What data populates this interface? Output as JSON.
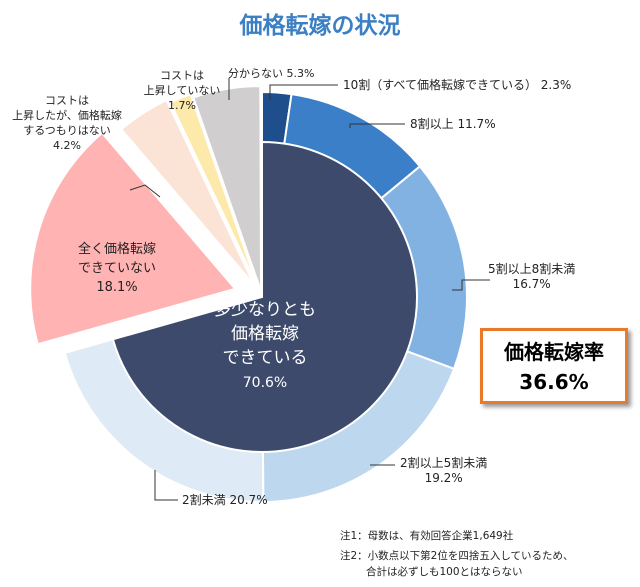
{
  "chart_data": {
    "type": "pie",
    "title": "価格転嫁の状況",
    "inner": {
      "label": "多少なりとも価格転嫁できている",
      "label_lines": [
        "多少なりとも",
        "価格転嫁",
        "できている"
      ],
      "value": 70.6,
      "color": "#3d4a6b"
    },
    "breakdown": [
      {
        "label": "10割（すべて価格転嫁できている）",
        "value": 2.3,
        "color": "#1f4e8c"
      },
      {
        "label": "8割以上",
        "value": 11.7,
        "color": "#3a7fc8"
      },
      {
        "label": "5割以上8割未満",
        "value": 16.7,
        "color": "#82b2e2"
      },
      {
        "label": "2割以上5割未満",
        "value": 19.2,
        "color": "#bdd7ee"
      },
      {
        "label": "2割未満",
        "value": 20.7,
        "color": "#deeaf6"
      }
    ],
    "others": [
      {
        "label": "全く価格転嫁できていない",
        "label_lines": [
          "全く価格転嫁",
          "できていない"
        ],
        "value": 18.1,
        "color": "#ffb3b3"
      },
      {
        "label": "コストは上昇したが、価格転嫁するつもりはない",
        "label_lines": [
          "コストは",
          "上昇したが、価格転嫁",
          "するつもりはない"
        ],
        "value": 4.2,
        "color": "#fbe4d6"
      },
      {
        "label": "コストは上昇していない",
        "label_lines": [
          "コストは",
          "上昇していない"
        ],
        "value": 1.7,
        "color": "#fde9a9"
      },
      {
        "label": "分からない",
        "value": 5.3,
        "color": "#d0cece"
      }
    ]
  },
  "rate": {
    "label": "価格転嫁率",
    "value": "36.6%"
  },
  "notes": [
    "注1：母数は、有効回答企業1,649社",
    "注2：小数点以下第2位を四捨五入しているため、",
    "合計は必ずしも100とはならない"
  ]
}
